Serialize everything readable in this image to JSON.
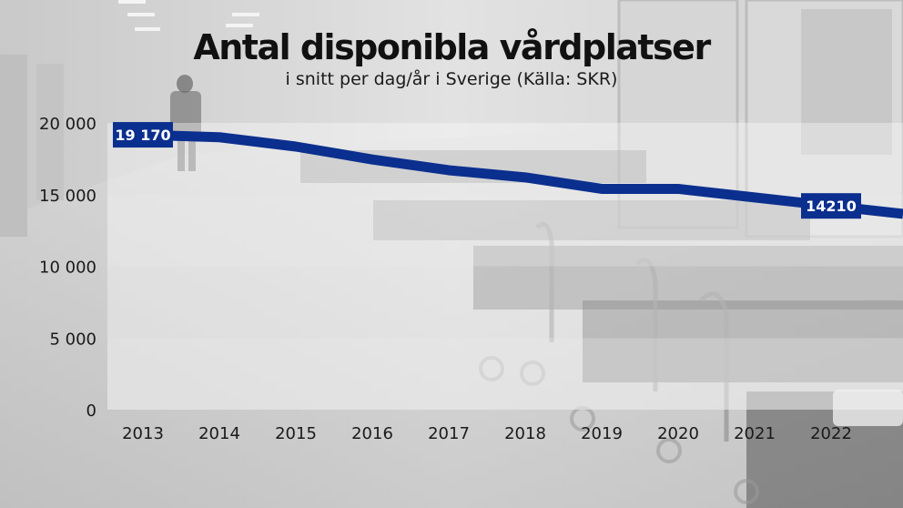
{
  "chart_data": {
    "type": "line",
    "title": "Antal disponibla vårdplatser",
    "subtitle": "i snitt per dag/år i Sverige (Källa: SKR)",
    "x": [
      "2013",
      "2014",
      "2015",
      "2016",
      "2017",
      "2018",
      "2019",
      "2020",
      "2021",
      "2022"
    ],
    "series": [
      {
        "values": [
          19170,
          19000,
          18350,
          17450,
          16700,
          16200,
          15400,
          15400,
          14800,
          14210
        ]
      }
    ],
    "data_labels": [
      {
        "index": 0,
        "text": "19 170"
      },
      {
        "index": 9,
        "text": "14210"
      }
    ],
    "yticks": [
      {
        "value": 0,
        "label": "0"
      },
      {
        "value": 5000,
        "label": "5 000"
      },
      {
        "value": 10000,
        "label": "10 000"
      },
      {
        "value": 15000,
        "label": "15 000"
      },
      {
        "value": 20000,
        "label": "20 000"
      }
    ],
    "ylim": [
      0,
      20000
    ],
    "grid": "alternating horizontal bands",
    "line_color": "#0b2f8f",
    "label_bg_color": "#0b2f8f"
  }
}
